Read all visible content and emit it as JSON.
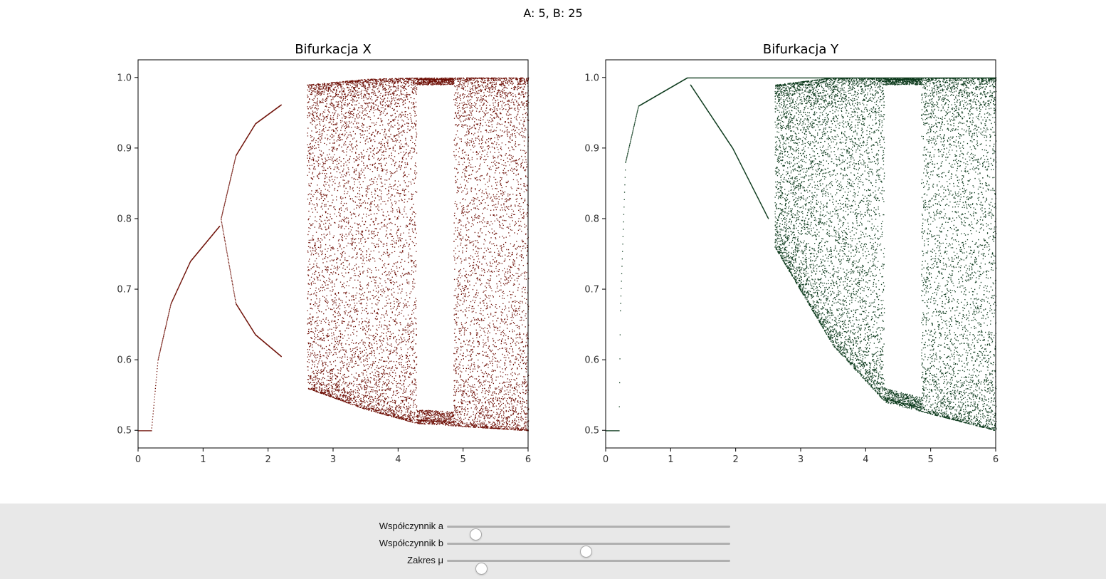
{
  "figure": {
    "suptitle": "A: 5, B: 25"
  },
  "chart_data": [
    {
      "type": "scatter",
      "title": "Bifurkacja X",
      "xlabel": "",
      "ylabel": "",
      "xlim": [
        0,
        6
      ],
      "ylim": [
        0.475,
        1.025
      ],
      "xticks": [
        "0",
        "1",
        "2",
        "3",
        "4",
        "5",
        "6"
      ],
      "yticks": [
        "0.5",
        "0.6",
        "0.7",
        "0.8",
        "0.9",
        "1.0"
      ],
      "color": "#6e0f06",
      "grid": false,
      "description_points": {
        "fixed_branch": [
          [
            0,
            0.5
          ],
          [
            0.2,
            0.5
          ],
          [
            0.3,
            0.6
          ],
          [
            0.5,
            0.68
          ],
          [
            0.8,
            0.74
          ],
          [
            1.25,
            0.79
          ]
        ],
        "period2_upper": [
          [
            1.27,
            0.8
          ],
          [
            1.5,
            0.89
          ],
          [
            1.8,
            0.935
          ],
          [
            2.2,
            0.962
          ]
        ],
        "period2_lower": [
          [
            1.27,
            0.8
          ],
          [
            1.5,
            0.68
          ],
          [
            1.8,
            0.636
          ],
          [
            2.2,
            0.605
          ]
        ],
        "chaotic_band": [
          [
            2.6,
            0.56,
            0.99
          ],
          [
            3.5,
            0.53,
            0.998
          ],
          [
            4.3,
            0.51,
            1.0
          ],
          [
            6.0,
            0.5,
            1.0
          ]
        ],
        "periodic_window": [
          4.28,
          4.85
        ]
      }
    },
    {
      "type": "scatter",
      "title": "Bifurkacja Y",
      "xlabel": "",
      "ylabel": "",
      "xlim": [
        0,
        6
      ],
      "ylim": [
        0.475,
        1.025
      ],
      "xticks": [
        "0",
        "1",
        "2",
        "3",
        "4",
        "5",
        "6"
      ],
      "yticks": [
        "0.5",
        "0.6",
        "0.7",
        "0.8",
        "0.9",
        "1.0"
      ],
      "color": "#0c3a1c",
      "grid": false,
      "description_points": {
        "fixed_branch": [
          [
            0,
            0.5
          ],
          [
            0.2,
            0.5
          ],
          [
            0.22,
            0.67
          ],
          [
            0.3,
            0.88
          ],
          [
            0.5,
            0.96
          ],
          [
            1.25,
            1.0
          ]
        ],
        "upper_line": [
          [
            1.25,
            1.0
          ],
          [
            6.0,
            1.0
          ]
        ],
        "descending_branch": [
          [
            1.3,
            0.99
          ],
          [
            1.95,
            0.9
          ],
          [
            2.5,
            0.8
          ]
        ],
        "chaotic_band": [
          [
            2.6,
            0.76,
            0.99
          ],
          [
            3.5,
            0.62,
            1.0
          ],
          [
            4.3,
            0.54,
            1.0
          ],
          [
            6.0,
            0.5,
            1.0
          ]
        ],
        "periodic_window": [
          4.28,
          4.85
        ]
      }
    }
  ],
  "controls": {
    "sliders": [
      {
        "label": "Współczynnik a",
        "value_fraction": 0.1
      },
      {
        "label": "Współczynnik b",
        "value_fraction": 0.49
      },
      {
        "label": "Zakres μ",
        "value_fraction": 0.12
      }
    ]
  }
}
